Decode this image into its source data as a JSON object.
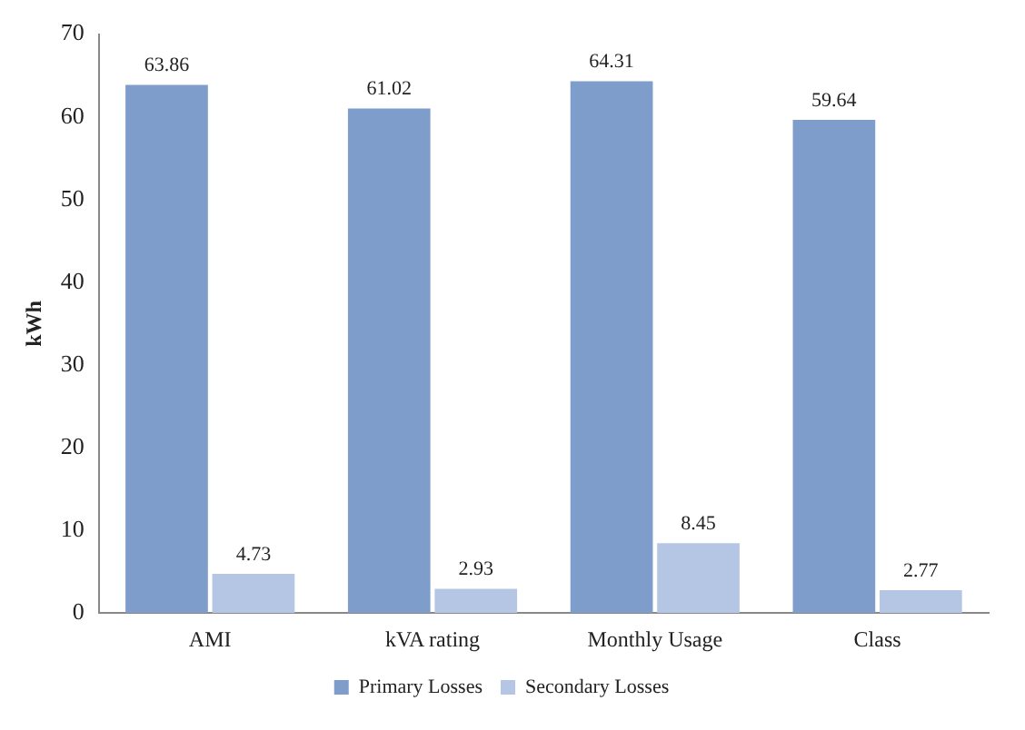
{
  "chart_data": {
    "type": "bar",
    "ylabel": "kWh",
    "categories": [
      "AMI",
      "kVA rating",
      "Monthly Usage",
      "Class"
    ],
    "series": [
      {
        "name": "Primary Losses",
        "color": "#7f9dca",
        "values": [
          63.86,
          61.02,
          64.31,
          59.64
        ]
      },
      {
        "name": "Secondary Losses",
        "color": "#b4c6e4",
        "values": [
          4.73,
          2.93,
          8.45,
          2.77
        ]
      }
    ],
    "ylim": [
      0,
      70
    ],
    "yticks": [
      0,
      10,
      20,
      30,
      40,
      50,
      60,
      70
    ],
    "grid": false,
    "legend": "bottom",
    "data_labels": true
  }
}
